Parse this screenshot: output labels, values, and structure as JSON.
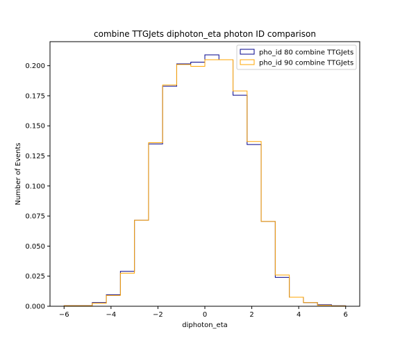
{
  "chart_data": {
    "type": "step-histogram",
    "title": "combine TTGJets diphoton_eta photon ID comparison",
    "xlabel": "diphoton_eta",
    "ylabel": "Number of Events",
    "xlim": [
      -6.6,
      6.6
    ],
    "ylim": [
      0,
      0.22
    ],
    "xticks": [
      -6,
      -4,
      -2,
      0,
      2,
      4,
      6
    ],
    "xtick_labels": [
      "−6",
      "−4",
      "−2",
      "0",
      "2",
      "4",
      "6"
    ],
    "yticks": [
      0.0,
      0.025,
      0.05,
      0.075,
      0.1,
      0.125,
      0.15,
      0.175,
      0.2
    ],
    "ytick_labels": [
      "0.000",
      "0.025",
      "0.050",
      "0.075",
      "0.100",
      "0.125",
      "0.150",
      "0.175",
      "0.200"
    ],
    "legend_position": "top-right",
    "bin_edges": [
      -6.0,
      -5.4,
      -4.8,
      -4.2,
      -3.6,
      -3.0,
      -2.4,
      -1.8,
      -1.2,
      -0.6,
      0.0,
      0.6,
      1.2,
      1.8,
      2.4,
      3.0,
      3.6,
      4.2,
      4.8,
      5.4,
      6.0
    ],
    "series": [
      {
        "name": "pho_id 80 combine TTGJets",
        "color": "#00008b",
        "values": [
          0.0005,
          0.0005,
          0.003,
          0.0095,
          0.029,
          0.0715,
          0.135,
          0.183,
          0.2015,
          0.203,
          0.209,
          0.205,
          0.1755,
          0.1345,
          0.0705,
          0.024,
          0.0075,
          0.003,
          0.0012,
          0.0004
        ]
      },
      {
        "name": "pho_id 90 combine TTGJets",
        "color": "#ffa500",
        "values": [
          0.0004,
          0.0004,
          0.0025,
          0.009,
          0.0275,
          0.0715,
          0.136,
          0.184,
          0.201,
          0.1995,
          0.205,
          0.205,
          0.179,
          0.137,
          0.0705,
          0.026,
          0.0075,
          0.003,
          0.0008,
          0.0003
        ]
      }
    ]
  }
}
